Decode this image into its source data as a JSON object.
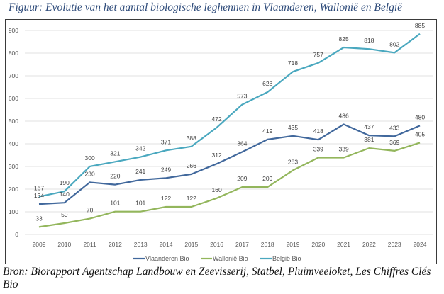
{
  "figure": {
    "caption": "Figuur: Evolutie van het aantal biologische leghennen in Vlaanderen, Wallonië en België",
    "source": "Bron: Biorapport Agentschap Landbouw en Zeevisserij, Statbel, Pluimveeloket, Les Chiffres Clés Bio"
  },
  "chart_data": {
    "type": "line",
    "title": "",
    "xlabel": "",
    "ylabel": "",
    "x": [
      "2009",
      "2010",
      "2011",
      "2012",
      "2013",
      "2014",
      "2015",
      "2016",
      "2017",
      "2018",
      "2019",
      "2020",
      "2021",
      "2022",
      "2023",
      "2024"
    ],
    "ylim": [
      0,
      900
    ],
    "yticks": [
      0,
      100,
      200,
      300,
      400,
      500,
      600,
      700,
      800,
      900
    ],
    "grid": true,
    "legend_position": "bottom-center",
    "data_labels": true,
    "series": [
      {
        "name": "Vlaanderen Bio",
        "color": "#41689c",
        "values": [
          134,
          140,
          230,
          220,
          241,
          249,
          266,
          312,
          364,
          419,
          435,
          418,
          486,
          437,
          433,
          480
        ]
      },
      {
        "name": "Wallonië Bio",
        "color": "#93b65c",
        "values": [
          33,
          50,
          70,
          101,
          101,
          122,
          122,
          160,
          209,
          209,
          283,
          339,
          339,
          381,
          369,
          405
        ]
      },
      {
        "name": "België Bio",
        "color": "#4aa8bf",
        "values": [
          167,
          190,
          300,
          321,
          342,
          371,
          388,
          472,
          573,
          628,
          718,
          757,
          825,
          818,
          802,
          885
        ]
      }
    ]
  }
}
